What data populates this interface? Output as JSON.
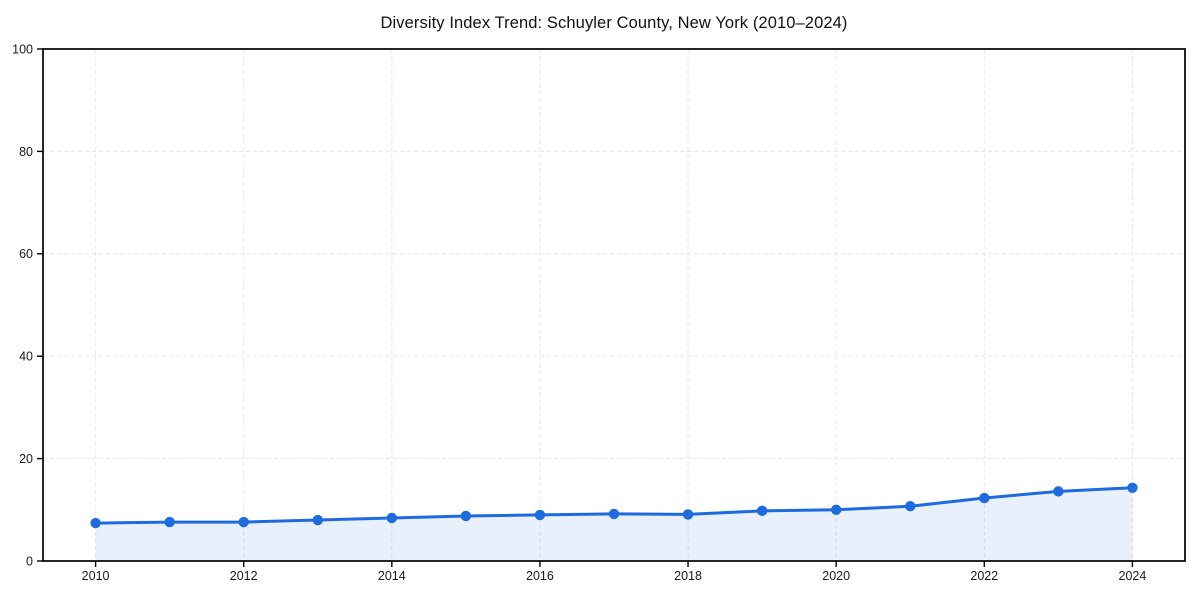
{
  "chart_data": {
    "type": "area",
    "title": "Diversity Index Trend: Schuyler County, New York (2010–2024)",
    "x": [
      2010,
      2011,
      2012,
      2013,
      2014,
      2015,
      2016,
      2017,
      2018,
      2019,
      2020,
      2021,
      2022,
      2023,
      2024
    ],
    "values": [
      7.4,
      7.6,
      7.6,
      8.0,
      8.4,
      8.8,
      9.0,
      9.2,
      9.1,
      9.8,
      10.0,
      10.7,
      12.3,
      13.6,
      14.3
    ],
    "xlabel": "",
    "ylabel": "",
    "xticks": [
      2010,
      2012,
      2014,
      2016,
      2018,
      2020,
      2022,
      2024
    ],
    "yticks": [
      0,
      20,
      40,
      60,
      80,
      100
    ],
    "xlim": [
      2009.29,
      2024.71
    ],
    "ylim": [
      0,
      100
    ],
    "grid": "dashed",
    "legend": false,
    "colors": {
      "line": "#1e6be0",
      "marker": "#1e6be0",
      "fill": "rgba(30,107,224,0.10)",
      "grid": "#e5e5e5",
      "spine": "#000000",
      "tick": "#000000",
      "tick_label": "#1a1a1a",
      "title": "#111111",
      "background": "#ffffff"
    }
  }
}
